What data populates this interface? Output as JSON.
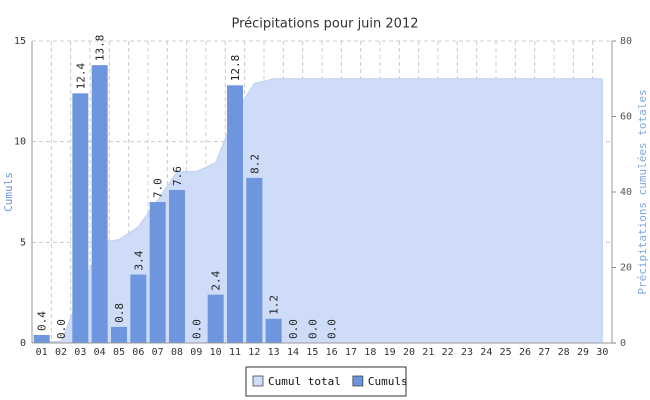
{
  "chart_data": {
    "type": "bar",
    "title": "Précipitations pour juin 2012",
    "categories": [
      "01",
      "02",
      "03",
      "04",
      "05",
      "06",
      "07",
      "08",
      "09",
      "10",
      "11",
      "12",
      "13",
      "14",
      "15",
      "16",
      "17",
      "18",
      "19",
      "20",
      "21",
      "22",
      "23",
      "24",
      "25",
      "26",
      "27",
      "28",
      "29",
      "30"
    ],
    "series": [
      {
        "name": "Cumul total",
        "type": "area",
        "axis": "y2",
        "color": "#cfdcf8",
        "values": [
          0.4,
          0.4,
          12.8,
          26.6,
          27.4,
          30.8,
          37.8,
          45.4,
          45.4,
          47.8,
          60.6,
          68.8,
          70,
          70,
          70,
          70,
          70,
          70,
          70,
          70,
          70,
          70,
          70,
          70,
          70,
          70,
          70,
          70,
          70,
          70
        ]
      },
      {
        "name": "Cumuls",
        "type": "bar",
        "color": "#6d96de",
        "values": [
          0.4,
          0,
          12.4,
          13.8,
          0.8,
          3.4,
          7,
          7.6,
          0,
          2.4,
          12.8,
          8.2,
          1.2,
          0,
          0,
          0,
          null,
          null,
          null,
          null,
          null,
          null,
          null,
          null,
          null,
          null,
          null,
          null,
          null,
          null
        ],
        "value_labels": [
          "0.4",
          "0.0",
          "12.4",
          "13.8",
          "0.8",
          "3.4",
          "7.0",
          "7.6",
          "0.0",
          "2.4",
          "12.8",
          "8.2",
          "1.2",
          "0.0",
          "0.0",
          "0.0",
          null,
          null,
          null,
          null,
          null,
          null,
          null,
          null,
          null,
          null,
          null,
          null,
          null,
          null
        ]
      }
    ],
    "ylim": [
      0,
      15
    ],
    "yticks": [
      0,
      5,
      10,
      15
    ],
    "y2lim": [
      0,
      80
    ],
    "y2ticks": [
      0,
      20,
      40,
      60,
      80
    ],
    "ylabel": "Cumuls",
    "y2label": "Précipitations cumulées totales",
    "grid": true,
    "legend": "bottom"
  }
}
